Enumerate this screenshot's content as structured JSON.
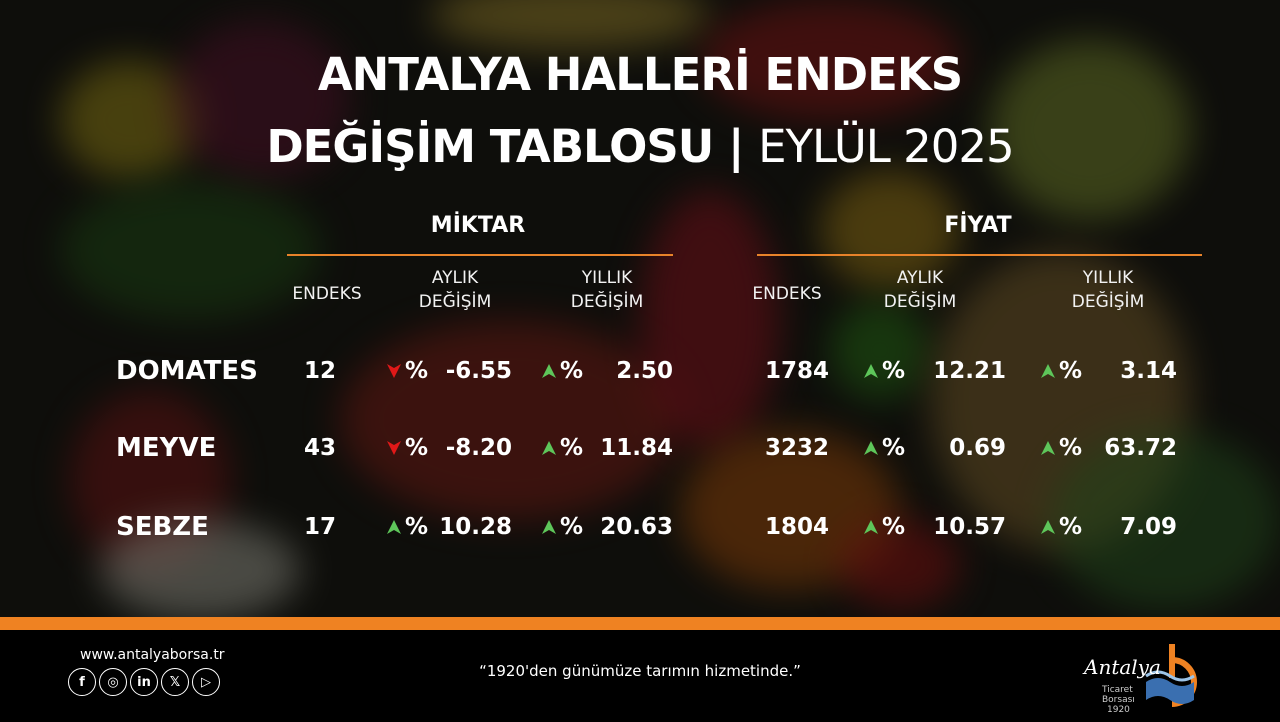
{
  "title": {
    "line1": "ANTALYA HALLERİ ENDEKS",
    "line2_bold": "DEĞİŞİM TABLOSU |",
    "line2_light": "EYLÜL 2025"
  },
  "sections": {
    "miktar": "MİKTAR",
    "fiyat": "FİYAT"
  },
  "headers": {
    "endeks": "ENDEKS",
    "aylik1": "AYLIK",
    "aylik2": "DEĞİŞİM",
    "yillik1": "YILLIK",
    "yillik2": "DEĞİŞİM"
  },
  "colors": {
    "accent": "#ef8222",
    "up": "#5ec65a",
    "down": "#e01818"
  },
  "rows": [
    {
      "label": "DOMATES",
      "miktar": {
        "endeks": "12",
        "aylik_dir": "down",
        "aylik_pct": "%",
        "aylik": "-6.55",
        "yillik_dir": "up",
        "yillik_pct": "%",
        "yillik": "2.50"
      },
      "fiyat": {
        "endeks": "1784",
        "aylik_dir": "up",
        "aylik_pct": "%",
        "aylik": "12.21",
        "yillik_dir": "up",
        "yillik_pct": "%",
        "yillik": "3.14"
      }
    },
    {
      "label": "MEYVE",
      "miktar": {
        "endeks": "43",
        "aylik_dir": "down",
        "aylik_pct": "%",
        "aylik": "-8.20",
        "yillik_dir": "up",
        "yillik_pct": "%",
        "yillik": "11.84"
      },
      "fiyat": {
        "endeks": "3232",
        "aylik_dir": "up",
        "aylik_pct": "%",
        "aylik": "0.69",
        "yillik_dir": "up",
        "yillik_pct": "%",
        "yillik": "63.72"
      }
    },
    {
      "label": "SEBZE",
      "miktar": {
        "endeks": "17",
        "aylik_dir": "up",
        "aylik_pct": "%",
        "aylik": "10.28",
        "yillik_dir": "up",
        "yillik_pct": "%",
        "yillik": "20.63"
      },
      "fiyat": {
        "endeks": "1804",
        "aylik_dir": "up",
        "aylik_pct": "%",
        "aylik": "10.57",
        "yillik_dir": "up",
        "yillik_pct": "%",
        "yillik": "7.09"
      }
    }
  ],
  "footer": {
    "website": "www.antalyaborsa.tr",
    "quote": "“1920'den günümüze tarımın hizmetinde.”",
    "logo_text": "Antalya Ticaret Borsası 1920",
    "social": [
      "facebook",
      "instagram",
      "linkedin",
      "x",
      "youtube"
    ],
    "social_glyphs": [
      "f",
      "◎",
      "in",
      "𝕏",
      "▷"
    ]
  }
}
